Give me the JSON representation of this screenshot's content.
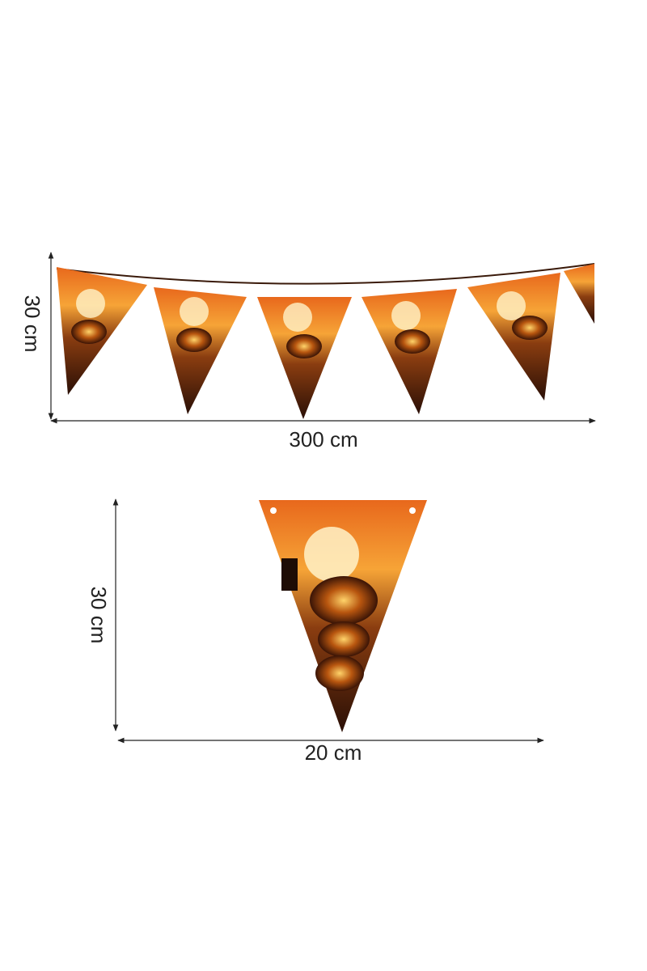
{
  "garland": {
    "height_label": "30 cm",
    "width_label": "300 cm"
  },
  "pennant": {
    "height_label": "30 cm",
    "width_label": "20 cm"
  }
}
